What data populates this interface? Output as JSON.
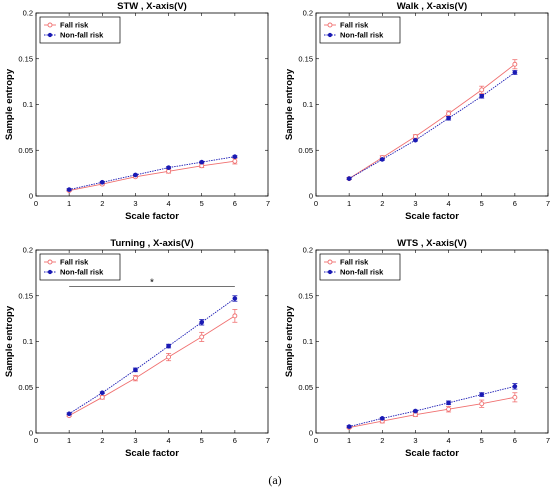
{
  "caption": "(a)",
  "colors": {
    "fall_risk": "#f07070",
    "non_fall_risk": "#1a1ab4"
  },
  "chart_data": [
    {
      "type": "line",
      "title": "STW , X-axis(V)",
      "xlabel": "Scale factor",
      "ylabel": "Sample entropy",
      "xlim": [
        0,
        7
      ],
      "ylim": [
        0,
        0.2
      ],
      "xticks": [
        "0",
        "1",
        "2",
        "3",
        "4",
        "5",
        "6",
        "7"
      ],
      "yticks": [
        "0",
        "0.05",
        "0.1",
        "0.15",
        "0.2"
      ],
      "legend": "top-left",
      "grid": false,
      "x": [
        1,
        2,
        3,
        4,
        5,
        6
      ],
      "series": [
        {
          "name": "Fall risk",
          "marker": "open-circle",
          "values": [
            0.006,
            0.013,
            0.021,
            0.027,
            0.033,
            0.038
          ],
          "errors": [
            0.001,
            0.001,
            0.001,
            0.002,
            0.002,
            0.003
          ]
        },
        {
          "name": "Non-fall risk",
          "marker": "filled-circle",
          "values": [
            0.007,
            0.015,
            0.023,
            0.031,
            0.037,
            0.043
          ],
          "errors": [
            0.001,
            0.001,
            0.001,
            0.001,
            0.001,
            0.001
          ]
        }
      ],
      "annotation": ""
    },
    {
      "type": "line",
      "title": "Walk , X-axis(V)",
      "xlabel": "Scale factor",
      "ylabel": "Sample entropy",
      "xlim": [
        0,
        7
      ],
      "ylim": [
        0,
        0.2
      ],
      "xticks": [
        "0",
        "1",
        "2",
        "3",
        "4",
        "5",
        "6",
        "7"
      ],
      "yticks": [
        "0",
        "0.05",
        "0.1",
        "0.15",
        "0.2"
      ],
      "legend": "top-left",
      "grid": false,
      "x": [
        1,
        2,
        3,
        4,
        5,
        6
      ],
      "series": [
        {
          "name": "Fall risk",
          "marker": "open-circle",
          "values": [
            0.019,
            0.042,
            0.065,
            0.09,
            0.116,
            0.144
          ],
          "errors": [
            0.001,
            0.002,
            0.002,
            0.003,
            0.004,
            0.005
          ]
        },
        {
          "name": "Non-fall risk",
          "marker": "filled-circle",
          "values": [
            0.019,
            0.04,
            0.061,
            0.085,
            0.109,
            0.135
          ],
          "errors": [
            0.001,
            0.001,
            0.001,
            0.002,
            0.002,
            0.002
          ]
        }
      ],
      "annotation": ""
    },
    {
      "type": "line",
      "title": "Turning , X-axis(V)",
      "xlabel": "Scale factor",
      "ylabel": "Sample entropy",
      "xlim": [
        0,
        7
      ],
      "ylim": [
        0,
        0.2
      ],
      "xticks": [
        "0",
        "1",
        "2",
        "3",
        "4",
        "5",
        "6",
        "7"
      ],
      "yticks": [
        "0",
        "0.05",
        "0.1",
        "0.15",
        "0.2"
      ],
      "legend": "top-left",
      "grid": false,
      "x": [
        1,
        2,
        3,
        4,
        5,
        6
      ],
      "series": [
        {
          "name": "Fall risk",
          "marker": "open-circle",
          "values": [
            0.019,
            0.039,
            0.06,
            0.083,
            0.105,
            0.128
          ],
          "errors": [
            0.001,
            0.002,
            0.003,
            0.004,
            0.005,
            0.007
          ]
        },
        {
          "name": "Non-fall risk",
          "marker": "filled-circle",
          "values": [
            0.021,
            0.044,
            0.069,
            0.095,
            0.121,
            0.147
          ],
          "errors": [
            0.001,
            0.001,
            0.002,
            0.002,
            0.003,
            0.003
          ]
        }
      ],
      "annotation": "*",
      "significance_bar": {
        "x_start": 1,
        "x_end": 6,
        "y": 0.16
      }
    },
    {
      "type": "line",
      "title": "WTS , X-axis(V)",
      "xlabel": "Scale factor",
      "ylabel": "Sample entropy",
      "xlim": [
        0,
        7
      ],
      "ylim": [
        0,
        0.2
      ],
      "xticks": [
        "0",
        "1",
        "2",
        "3",
        "4",
        "5",
        "6",
        "7"
      ],
      "yticks": [
        "0",
        "0.05",
        "0.1",
        "0.15",
        "0.2"
      ],
      "legend": "top-left",
      "grid": false,
      "x": [
        1,
        2,
        3,
        4,
        5,
        6
      ],
      "series": [
        {
          "name": "Fall risk",
          "marker": "open-circle",
          "values": [
            0.006,
            0.013,
            0.02,
            0.026,
            0.032,
            0.039
          ],
          "errors": [
            0.001,
            0.002,
            0.002,
            0.003,
            0.004,
            0.005
          ]
        },
        {
          "name": "Non-fall risk",
          "marker": "filled-circle",
          "values": [
            0.007,
            0.016,
            0.024,
            0.033,
            0.042,
            0.051
          ],
          "errors": [
            0.001,
            0.001,
            0.001,
            0.002,
            0.002,
            0.003
          ]
        }
      ],
      "annotation": ""
    }
  ]
}
